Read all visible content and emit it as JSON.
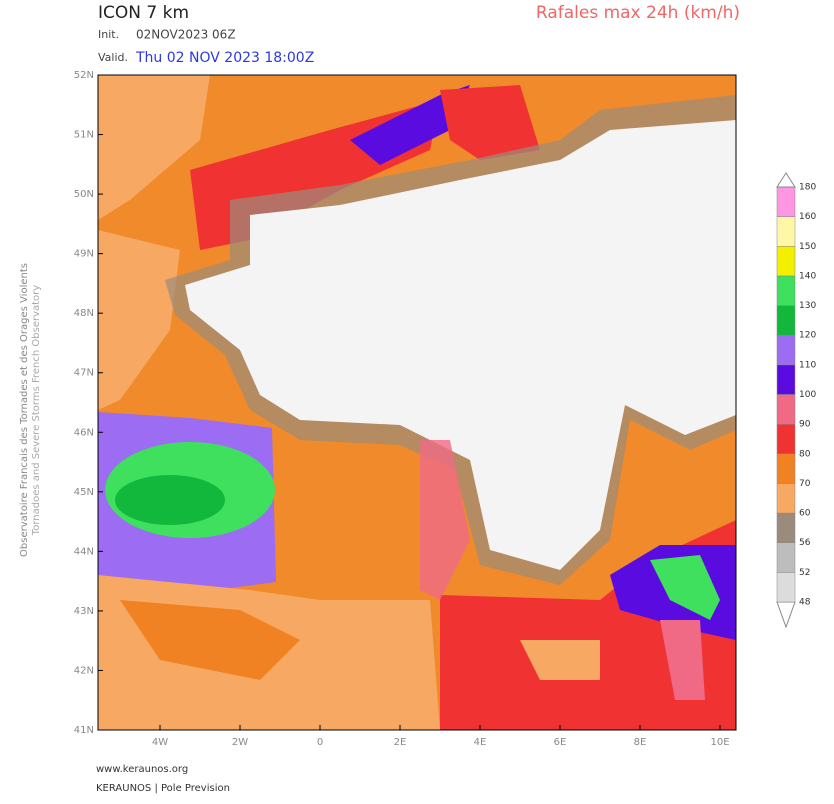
{
  "header": {
    "model": "ICON 7 km",
    "product": "Rafales max 24h (km/h)",
    "init_label": "Init.",
    "init": "02NOV2023 06Z",
    "valid_label": "Valid.",
    "valid": "Thu 02 NOV 2023 18:00Z"
  },
  "side": {
    "line1": "Observatoire Francais des Tornades et des Orages Violents",
    "line2": "Tornadoes and Severe Storms French Observatory"
  },
  "map": {
    "lat_ticks": [
      "52N",
      "51N",
      "50N",
      "49N",
      "48N",
      "47N",
      "46N",
      "45N",
      "44N",
      "43N",
      "42N",
      "41N"
    ],
    "lon_ticks": [
      "4W",
      "2W",
      "0",
      "2E",
      "4E",
      "6E",
      "8E",
      "10E"
    ]
  },
  "legend": {
    "levels": [
      48,
      52,
      56,
      60,
      70,
      80,
      90,
      100,
      110,
      120,
      130,
      140,
      150,
      160,
      180
    ],
    "colors": [
      "#ffffff",
      "#dcdcdc",
      "#bdbdbd",
      "#9b8b7b",
      "#f7a862",
      "#f08224",
      "#f03232",
      "#f06a86",
      "#5a0ce0",
      "#9c6cf2",
      "#12b83c",
      "#3ee05e",
      "#f2f000",
      "#fff7a8",
      "#ff96e2",
      "#ffffff"
    ]
  },
  "footer": {
    "url": "www.keraunos.org",
    "org": "KERAUNOS | Pole Prevision"
  }
}
